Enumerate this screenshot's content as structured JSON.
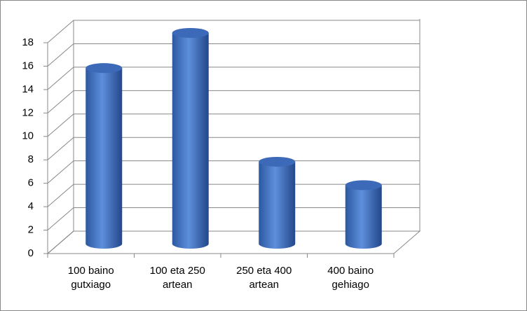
{
  "chart_data": {
    "type": "bar",
    "style": "3d-cylinder",
    "categories": [
      "100 baino gutxiago",
      "100 eta 250 artean",
      "250 eta 400 artean",
      "400 baino gehiago"
    ],
    "values": [
      15,
      18,
      7,
      5
    ],
    "color": "#4a7cc9",
    "ylim": [
      0,
      18
    ],
    "yticks": [
      0,
      2,
      4,
      6,
      8,
      10,
      12,
      14,
      16,
      18
    ],
    "grid": true
  }
}
